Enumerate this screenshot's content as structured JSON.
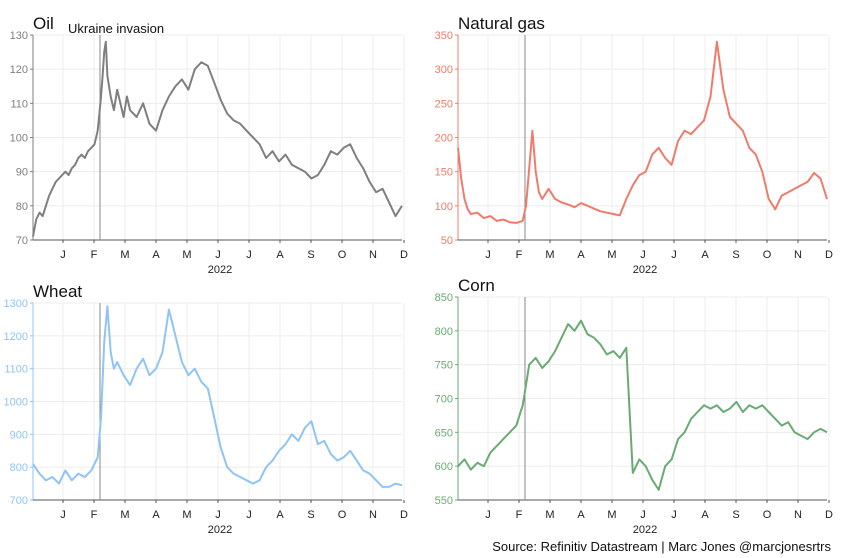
{
  "year_label": "2022",
  "source": "Source: Refinitiv Datastream | Marc Jones @marcjonesrtrs",
  "chart_data": [
    {
      "type": "line",
      "title": "Oil",
      "color": "#7f7f7f",
      "ylim": [
        70,
        130
      ],
      "yticks": [
        70,
        80,
        90,
        100,
        110,
        120,
        130
      ],
      "x_ticks": [
        "J",
        "F",
        "M",
        "A",
        "M",
        "J",
        "J",
        "A",
        "S",
        "O",
        "N",
        "D"
      ],
      "event_line": {
        "x": 2.0,
        "label": "Ukraine invasion"
      },
      "grid": true,
      "series": [
        {
          "x": [
            0,
            0.1,
            0.2,
            0.3,
            0.4,
            0.5,
            0.6,
            0.7,
            0.8,
            0.9,
            1.0,
            1.1,
            1.2,
            1.3,
            1.4,
            1.5,
            1.6,
            1.7,
            1.8,
            1.9,
            2.0,
            2.05,
            2.1,
            2.15,
            2.2,
            2.25,
            2.3,
            2.4,
            2.5,
            2.6,
            2.7,
            2.8,
            2.9,
            3.0,
            3.2,
            3.4,
            3.6,
            3.8,
            4.0,
            4.2,
            4.4,
            4.6,
            4.8,
            5.0,
            5.2,
            5.4,
            5.6,
            5.8,
            6.0,
            6.2,
            6.4,
            6.6,
            6.8,
            7.0,
            7.2,
            7.4,
            7.6,
            7.8,
            8.0,
            8.2,
            8.4,
            8.6,
            8.8,
            9.0,
            9.2,
            9.4,
            9.6,
            9.8,
            10.0,
            10.2,
            10.4,
            10.6,
            10.8,
            11.0,
            11.2,
            11.4
          ],
          "values": [
            71,
            76,
            78,
            77,
            80,
            83,
            85,
            87,
            88,
            89,
            90,
            89,
            91,
            92,
            94,
            95,
            94,
            96,
            97,
            98,
            102,
            107,
            112,
            118,
            125,
            128,
            118,
            112,
            108,
            114,
            110,
            106,
            112,
            108,
            106,
            110,
            104,
            102,
            108,
            112,
            115,
            117,
            114,
            120,
            122,
            121,
            116,
            111,
            107,
            105,
            104,
            102,
            100,
            98,
            94,
            96,
            93,
            95,
            92,
            91,
            90,
            88,
            89,
            92,
            96,
            95,
            97,
            98,
            94,
            91,
            87,
            84,
            85,
            81,
            77,
            80
          ]
        }
      ]
    },
    {
      "type": "line",
      "title": "Natural gas",
      "color": "#f07b6a",
      "ylim": [
        50,
        350
      ],
      "yticks": [
        50,
        100,
        150,
        200,
        250,
        300,
        350
      ],
      "x_ticks": [
        "J",
        "F",
        "M",
        "A",
        "M",
        "J",
        "J",
        "A",
        "S",
        "O",
        "N",
        "D"
      ],
      "event_line": {
        "x": 2.0,
        "label": ""
      },
      "grid": true,
      "series": [
        {
          "x": [
            0,
            0.1,
            0.2,
            0.3,
            0.4,
            0.6,
            0.8,
            1.0,
            1.2,
            1.4,
            1.6,
            1.8,
            2.0,
            2.1,
            2.2,
            2.3,
            2.4,
            2.5,
            2.6,
            2.8,
            3.0,
            3.2,
            3.4,
            3.6,
            3.8,
            4.0,
            4.2,
            4.4,
            4.6,
            4.8,
            5.0,
            5.2,
            5.4,
            5.6,
            5.8,
            6.0,
            6.2,
            6.4,
            6.6,
            6.8,
            7.0,
            7.2,
            7.4,
            7.6,
            7.8,
            8.0,
            8.2,
            8.4,
            8.6,
            8.8,
            9.0,
            9.2,
            9.4,
            9.6,
            9.8,
            10.0,
            10.2,
            10.4,
            10.6,
            10.8,
            11.0,
            11.2,
            11.4
          ],
          "values": [
            185,
            140,
            110,
            95,
            88,
            90,
            82,
            85,
            78,
            80,
            76,
            75,
            78,
            100,
            155,
            210,
            150,
            120,
            110,
            125,
            110,
            105,
            102,
            98,
            104,
            100,
            96,
            92,
            90,
            88,
            86,
            110,
            130,
            145,
            150,
            175,
            185,
            170,
            160,
            195,
            210,
            205,
            215,
            225,
            260,
            340,
            270,
            230,
            220,
            210,
            185,
            175,
            150,
            110,
            95,
            115,
            120,
            125,
            130,
            135,
            148,
            140,
            110
          ]
        }
      ]
    },
    {
      "type": "line",
      "title": "Wheat",
      "color": "#90c4f5",
      "ylim": [
        700,
        1300
      ],
      "yticks": [
        700,
        800,
        900,
        1000,
        1100,
        1200,
        1300
      ],
      "x_ticks": [
        "J",
        "F",
        "M",
        "A",
        "M",
        "J",
        "J",
        "A",
        "S",
        "O",
        "N",
        "D"
      ],
      "event_line": {
        "x": 2.0,
        "label": ""
      },
      "grid": true,
      "series": [
        {
          "x": [
            0,
            0.2,
            0.4,
            0.6,
            0.8,
            1.0,
            1.2,
            1.4,
            1.6,
            1.8,
            2.0,
            2.1,
            2.2,
            2.3,
            2.4,
            2.5,
            2.6,
            2.8,
            3.0,
            3.2,
            3.4,
            3.6,
            3.8,
            4.0,
            4.2,
            4.4,
            4.6,
            4.8,
            5.0,
            5.2,
            5.4,
            5.6,
            5.8,
            6.0,
            6.2,
            6.4,
            6.6,
            6.8,
            7.0,
            7.2,
            7.4,
            7.6,
            7.8,
            8.0,
            8.2,
            8.4,
            8.6,
            8.8,
            9.0,
            9.2,
            9.4,
            9.6,
            9.8,
            10.0,
            10.2,
            10.4,
            10.6,
            10.8,
            11.0,
            11.2,
            11.4
          ],
          "values": [
            810,
            780,
            760,
            770,
            750,
            790,
            760,
            780,
            770,
            790,
            830,
            950,
            1180,
            1290,
            1150,
            1100,
            1120,
            1080,
            1050,
            1100,
            1130,
            1080,
            1100,
            1150,
            1280,
            1200,
            1120,
            1080,
            1100,
            1060,
            1040,
            950,
            860,
            800,
            780,
            770,
            760,
            750,
            760,
            800,
            820,
            850,
            870,
            900,
            880,
            920,
            940,
            870,
            880,
            840,
            820,
            830,
            850,
            820,
            790,
            780,
            760,
            740,
            740,
            750,
            745
          ]
        }
      ]
    },
    {
      "type": "line",
      "title": "Corn",
      "color": "#6aaa74",
      "ylim": [
        550,
        850
      ],
      "yticks": [
        550,
        600,
        650,
        700,
        750,
        800,
        850
      ],
      "x_ticks": [
        "J",
        "F",
        "M",
        "A",
        "M",
        "J",
        "J",
        "A",
        "S",
        "O",
        "N",
        "D"
      ],
      "event_line": {
        "x": 2.0,
        "label": ""
      },
      "grid": true,
      "series": [
        {
          "x": [
            0,
            0.2,
            0.4,
            0.6,
            0.8,
            1.0,
            1.2,
            1.4,
            1.6,
            1.8,
            2.0,
            2.1,
            2.2,
            2.4,
            2.6,
            2.8,
            3.0,
            3.2,
            3.4,
            3.6,
            3.8,
            4.0,
            4.2,
            4.4,
            4.6,
            4.8,
            5.0,
            5.2,
            5.4,
            5.6,
            5.8,
            6.0,
            6.2,
            6.4,
            6.6,
            6.8,
            7.0,
            7.2,
            7.4,
            7.6,
            7.8,
            8.0,
            8.2,
            8.4,
            8.6,
            8.8,
            9.0,
            9.2,
            9.4,
            9.6,
            9.8,
            10.0,
            10.2,
            10.4,
            10.6,
            10.8,
            11.0,
            11.2,
            11.4
          ],
          "values": [
            600,
            610,
            595,
            605,
            600,
            620,
            630,
            640,
            650,
            660,
            690,
            720,
            750,
            760,
            745,
            755,
            770,
            790,
            810,
            800,
            815,
            795,
            790,
            780,
            765,
            770,
            760,
            775,
            590,
            610,
            600,
            580,
            565,
            600,
            610,
            640,
            650,
            670,
            680,
            690,
            685,
            690,
            680,
            685,
            695,
            680,
            690,
            685,
            690,
            680,
            670,
            660,
            665,
            650,
            645,
            640,
            650,
            655,
            650
          ]
        }
      ]
    }
  ]
}
